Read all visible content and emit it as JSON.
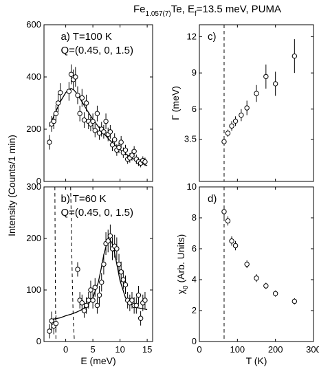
{
  "title": {
    "main": "Fe",
    "sub": "1.057(7)",
    "rest1": "Te, E",
    "sub2": "f",
    "rest2": "=13.5 meV, PUMA"
  },
  "shared_ylabel": "Intensity (Counts/1 min)",
  "chart_data": [
    {
      "panel": "a",
      "type": "scatter",
      "label_line1": "a) T=100 K",
      "label_line2": "Q=(0.45, 0, 1.5)",
      "xlim": [
        -4,
        16
      ],
      "ylim": [
        0,
        600
      ],
      "xticks": [],
      "yticks": [
        "0",
        "200",
        "400",
        "600"
      ],
      "xlabel": "",
      "series": [
        {
          "x": [
            -3.0,
            -2.6,
            -2.2,
            -1.8,
            -1.4,
            -1.0,
            0.6,
            1.0,
            1.4,
            1.8,
            2.2,
            2.6,
            3.0,
            3.4,
            3.8,
            4.2,
            4.6,
            5.0,
            5.4,
            5.8,
            6.2,
            6.6,
            7.0,
            7.4,
            7.8,
            8.2,
            8.6,
            9.0,
            9.4,
            9.8,
            10.2,
            10.6,
            11.0,
            11.4,
            11.8,
            12.2,
            12.6,
            13.0,
            13.4,
            13.8,
            14.2,
            14.6
          ],
          "y": [
            150,
            220,
            230,
            260,
            300,
            340,
            345,
            410,
            390,
            400,
            330,
            260,
            320,
            235,
            300,
            230,
            220,
            230,
            195,
            260,
            185,
            200,
            190,
            230,
            180,
            190,
            140,
            160,
            120,
            130,
            150,
            110,
            120,
            85,
            90,
            100,
            115,
            85,
            75,
            70,
            80,
            75
          ],
          "yerr": [
            28,
            30,
            30,
            32,
            34,
            36,
            36,
            38,
            38,
            38,
            34,
            30,
            34,
            30,
            32,
            30,
            28,
            30,
            26,
            30,
            26,
            28,
            26,
            30,
            26,
            26,
            24,
            24,
            22,
            22,
            24,
            20,
            20,
            18,
            18,
            20,
            20,
            18,
            16,
            16,
            16,
            16
          ]
        }
      ],
      "fit_curve": {
        "x": [
          -3,
          -2,
          -1,
          0,
          0.5,
          1,
          1.5,
          2,
          3,
          4,
          5,
          6,
          7,
          8,
          9,
          10,
          11,
          12,
          13,
          14,
          15
        ],
        "y": [
          210,
          260,
          305,
          340,
          352,
          356,
          350,
          338,
          305,
          270,
          238,
          210,
          184,
          160,
          140,
          122,
          106,
          92,
          80,
          70,
          60
        ]
      }
    },
    {
      "panel": "b",
      "type": "scatter",
      "label_line1": "b) T=60 K",
      "label_line2": "Q=(0.45, 0, 1.5)",
      "xlim": [
        -4,
        16
      ],
      "ylim": [
        0,
        300
      ],
      "xticks": [
        "0",
        "5",
        "10",
        "15"
      ],
      "yticks": [
        "0",
        "100",
        "200",
        "300"
      ],
      "xlabel": "E (meV)",
      "series": [
        {
          "x": [
            -3.0,
            -2.6,
            -2.2,
            -1.8,
            2.2,
            2.6,
            3.0,
            3.4,
            3.8,
            4.2,
            4.6,
            5.0,
            5.4,
            5.8,
            6.2,
            6.6,
            7.0,
            7.4,
            7.8,
            8.2,
            8.6,
            9.0,
            9.4,
            9.8,
            10.2,
            10.6,
            11.0,
            11.4,
            11.8,
            12.2,
            12.6,
            13.0,
            13.4,
            13.8,
            14.2,
            14.6
          ],
          "y": [
            20,
            40,
            30,
            35,
            140,
            80,
            75,
            60,
            70,
            80,
            100,
            80,
            105,
            70,
            90,
            115,
            150,
            190,
            195,
            205,
            180,
            185,
            180,
            150,
            135,
            120,
            110,
            80,
            75,
            80,
            70,
            70,
            90,
            45,
            75,
            80
          ],
          "yerr": [
            14,
            18,
            16,
            16,
            14,
            16,
            16,
            14,
            16,
            16,
            18,
            16,
            18,
            16,
            18,
            18,
            20,
            22,
            22,
            22,
            22,
            22,
            22,
            20,
            20,
            18,
            18,
            16,
            16,
            16,
            16,
            16,
            18,
            14,
            16,
            16
          ]
        }
      ],
      "fit_curve": {
        "x": [
          -3,
          -2,
          -1,
          0,
          1,
          2,
          3,
          4,
          5,
          6,
          6.5,
          7,
          7.5,
          8,
          8.5,
          9,
          9.5,
          10,
          11,
          12,
          13,
          14,
          15
        ],
        "y": [
          42,
          44,
          46,
          50,
          53,
          57,
          62,
          70,
          85,
          115,
          140,
          168,
          188,
          198,
          192,
          172,
          145,
          118,
          85,
          72,
          66,
          64,
          62
        ]
      },
      "dashed_curves": [
        {
          "x": [
            -2.0,
            -1.95,
            -1.9,
            -1.85,
            -1.8
          ],
          "y": [
            300,
            200,
            100,
            40,
            0
          ]
        },
        {
          "x": [
            0.9,
            1.0,
            1.1,
            1.25,
            1.4,
            1.6
          ],
          "y": [
            300,
            250,
            180,
            100,
            40,
            0
          ]
        }
      ]
    },
    {
      "panel": "c",
      "type": "scatter",
      "label": "c)",
      "xlim": [
        0,
        300
      ],
      "ylim": [
        0,
        13
      ],
      "xticks": [],
      "yticks": [
        "3.5",
        "6",
        "9",
        "12"
      ],
      "ylabel": "Γ (meV)",
      "vline_x": 65,
      "series": [
        {
          "x": [
            65,
            75,
            85,
            95,
            110,
            125,
            150,
            175,
            200,
            250
          ],
          "y": [
            3.3,
            4.0,
            4.6,
            5.0,
            5.5,
            6.1,
            7.3,
            8.7,
            8.1,
            10.4
          ],
          "yerr": [
            0.3,
            0.3,
            0.4,
            0.4,
            0.5,
            0.6,
            0.7,
            1.0,
            1.0,
            1.4
          ]
        }
      ]
    },
    {
      "panel": "d",
      "type": "scatter",
      "label": "d)",
      "xlim": [
        0,
        300
      ],
      "ylim": [
        0,
        10
      ],
      "xticks": [
        "0",
        "100",
        "200",
        "300"
      ],
      "yticks": [
        "0",
        "2",
        "4",
        "6",
        "8",
        "10"
      ],
      "xlabel": "T (K)",
      "ylabel_main": "χ",
      "ylabel_sub": "0",
      "ylabel_rest": " (Arb. Units)",
      "vline_x": 65,
      "series": [
        {
          "x": [
            65,
            75,
            85,
            95,
            125,
            150,
            175,
            200,
            250
          ],
          "y": [
            8.4,
            7.8,
            6.5,
            6.2,
            5.0,
            4.1,
            3.6,
            3.1,
            2.6
          ],
          "yerr": [
            0.4,
            0.3,
            0.3,
            0.3,
            0.25,
            0.25,
            0.2,
            0.2,
            0.2
          ]
        }
      ]
    }
  ]
}
